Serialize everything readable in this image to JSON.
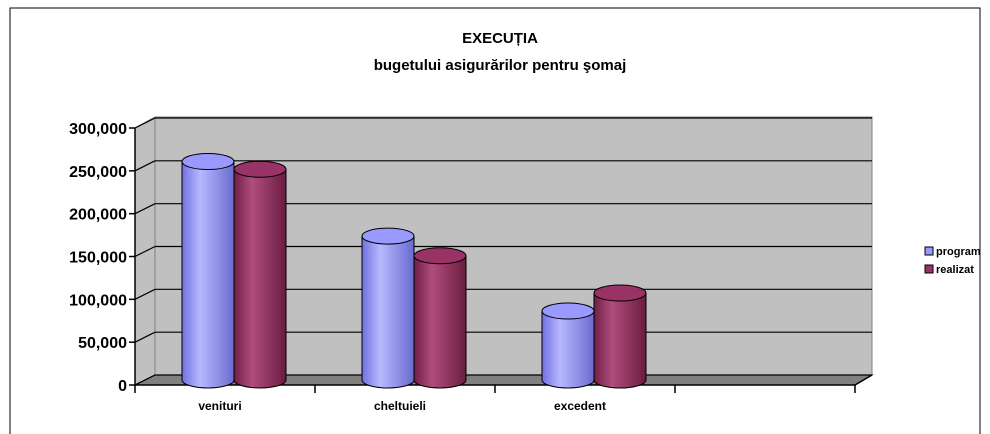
{
  "chart_data": {
    "type": "bar3d-cylinder",
    "title": "EXECUȚIA",
    "subtitle": "bugetului asigurărilor pentru şomaj",
    "categories": [
      "venituri",
      "cheltuieli",
      "excedent",
      null
    ],
    "series": [
      {
        "name": "program",
        "color": "#9999ff",
        "values": [
          255000,
          168000,
          80500,
          null
        ]
      },
      {
        "name": "realizat",
        "color": "#993366",
        "values": [
          246000,
          145000,
          101500,
          null
        ]
      }
    ],
    "ylim": [
      0,
      300000
    ],
    "yticks": [
      0,
      {
        "value": 50000,
        "label": "50,000"
      },
      {
        "value": 100000,
        "label": "100,000"
      },
      {
        "value": 150000,
        "label": "150,000"
      },
      {
        "value": 200000,
        "label": "200,000"
      },
      {
        "value": 250000,
        "label": "250,000"
      },
      {
        "value": 300000,
        "label": "300,000"
      }
    ],
    "grid": true,
    "legend": "right"
  }
}
